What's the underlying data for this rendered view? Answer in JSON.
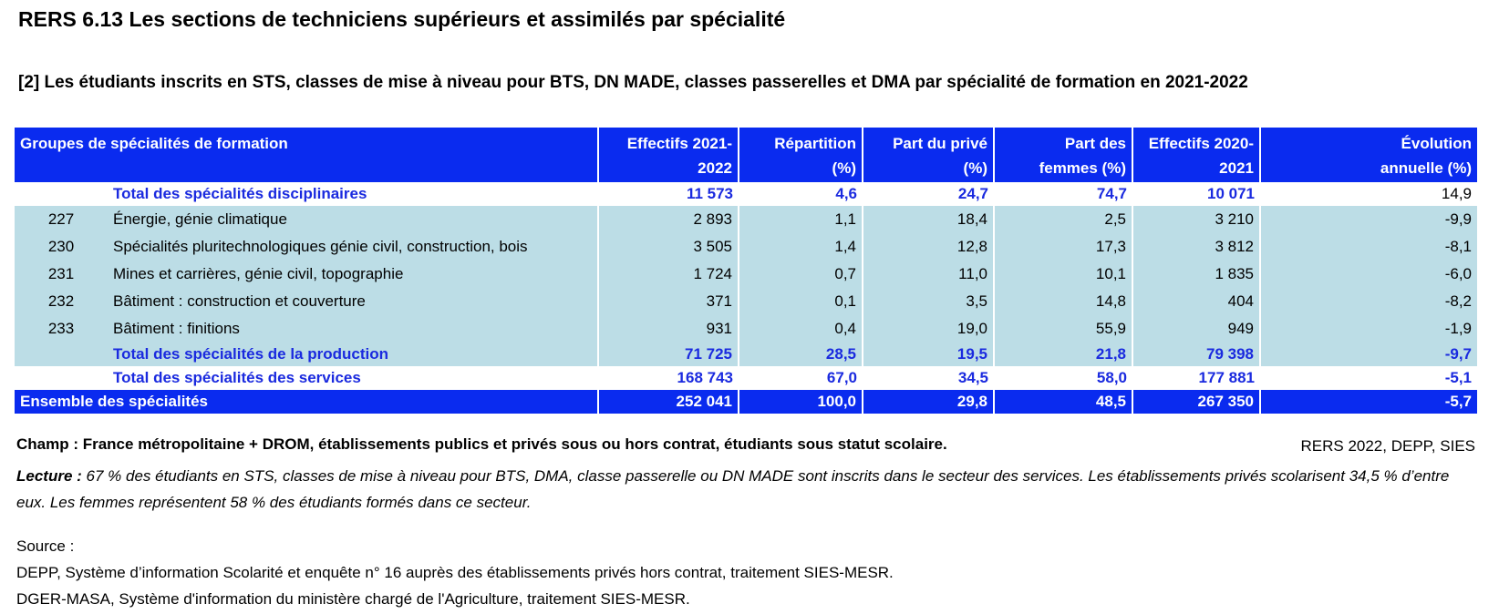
{
  "title": "RERS 6.13 Les sections de techniciens supérieurs et assimilés par spécialité",
  "subtitle": "[2] Les étudiants inscrits en STS, classes de mise à niveau pour BTS, DN MADE, classes passerelles et DMA par spécialité de formation en 2021-2022",
  "colors": {
    "header_blue": "#0a2bef",
    "row_light": "#bcdde6",
    "total_text": "#1a2adf"
  },
  "table": {
    "headers": {
      "group": "Groupes de spécialités de formation",
      "eff2122_l1": "Effectifs  2021-",
      "eff2122_l2": "2022",
      "rep_l1": "Répartition",
      "rep_l2": "(%)",
      "prive_l1": "Part du privé",
      "prive_l2": "(%)",
      "femmes_l1": "Part des",
      "femmes_l2": "femmes (%)",
      "eff2021_l1": "Effectifs  2020-",
      "eff2021_l2": "2021",
      "evol_l1": "Évolution",
      "evol_l2": "annuelle (%)"
    },
    "total_disciplinaires": {
      "label": "Total des spécialités disciplinaires",
      "eff2122": "11 573",
      "rep": "4,6",
      "prive": "24,7",
      "femmes": "74,7",
      "eff2021": "10 071",
      "evol": "14,9"
    },
    "rows": [
      {
        "code": "227",
        "label": "Énergie, génie climatique",
        "eff2122": "2 893",
        "rep": "1,1",
        "prive": "18,4",
        "femmes": "2,5",
        "eff2021": "3 210",
        "evol": "-9,9"
      },
      {
        "code": "230",
        "label": "Spécialités pluritechnologiques génie civil, construction, bois",
        "eff2122": "3 505",
        "rep": "1,4",
        "prive": "12,8",
        "femmes": "17,3",
        "eff2021": "3 812",
        "evol": "-8,1"
      },
      {
        "code": "231",
        "label": "Mines et carrières, génie civil, topographie",
        "eff2122": "1 724",
        "rep": "0,7",
        "prive": "11,0",
        "femmes": "10,1",
        "eff2021": "1 835",
        "evol": "-6,0"
      },
      {
        "code": "232",
        "label": "Bâtiment : construction et couverture",
        "eff2122": "371",
        "rep": "0,1",
        "prive": "3,5",
        "femmes": "14,8",
        "eff2021": "404",
        "evol": "-8,2"
      },
      {
        "code": "233",
        "label": "Bâtiment : finitions",
        "eff2122": "931",
        "rep": "0,4",
        "prive": "19,0",
        "femmes": "55,9",
        "eff2021": "949",
        "evol": "-1,9"
      }
    ],
    "total_production": {
      "label": "Total des spécialités de la production",
      "eff2122": "71 725",
      "rep": "28,5",
      "prive": "19,5",
      "femmes": "21,8",
      "eff2021": "79 398",
      "evol": "-9,7"
    },
    "total_services": {
      "label": "Total des spécialités des services",
      "eff2122": "168 743",
      "rep": "67,0",
      "prive": "34,5",
      "femmes": "58,0",
      "eff2021": "177 881",
      "evol": "-5,1"
    },
    "ensemble": {
      "label": "Ensemble des spécialités",
      "eff2122": "252 041",
      "rep": "100,0",
      "prive": "29,8",
      "femmes": "48,5",
      "eff2021": "267 350",
      "evol": "-5,7"
    }
  },
  "champ": "Champ : France métropolitaine + DROM, établissements publics et privés sous ou hors contrat, étudiants sous statut scolaire.",
  "credit": "RERS 2022, DEPP, SIES",
  "lecture_label": "Lecture :",
  "lecture_text": " 67 % des étudiants en STS, classes de mise à niveau pour BTS, DMA, classe passerelle ou DN MADE sont inscrits dans le secteur des services. Les établissements privés scolarisent 34,5 % d’entre eux. Les femmes représentent 58 % des étudiants formés dans ce secteur.",
  "source_label": "Source :",
  "source_lines": [
    "DEPP, Système d’information Scolarité et enquête n° 16 auprès des établissements privés hors contrat, traitement SIES-MESR.",
    "DGER-MASA, Système d'information du ministère chargé de l'Agriculture, traitement SIES-MESR."
  ]
}
